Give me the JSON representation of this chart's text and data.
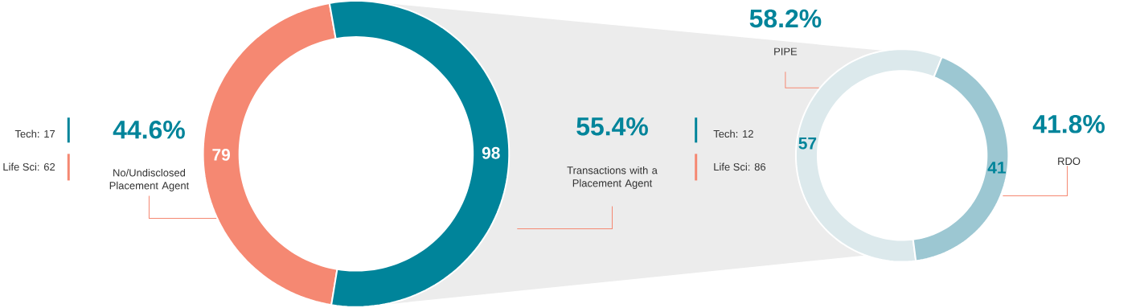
{
  "chart_data": [
    {
      "type": "donut",
      "categories": [
        "No/Undisclosed Placement Agent",
        "Transactions with a Placement Agent"
      ],
      "values": [
        79,
        98
      ],
      "colors": [
        "#f58872",
        "#00849a"
      ],
      "data_labels": true,
      "annotations": [
        "44.6%",
        "55.4%",
        "Tech: 17",
        "Life Sci: 62",
        "Tech: 12",
        "Life Sci: 86"
      ]
    },
    {
      "type": "donut",
      "categories": [
        "PIPE",
        "RDO"
      ],
      "values": [
        57,
        41
      ],
      "colors": [
        "#dce9ec",
        "#9cc7d2"
      ],
      "data_labels": true,
      "annotations": [
        "58.2%",
        "41.8%"
      ]
    }
  ]
}
